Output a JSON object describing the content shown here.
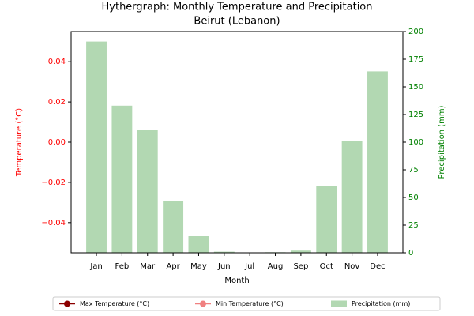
{
  "chart_data": {
    "type": "bar",
    "title": "Hythergraph: Monthly Temperature and Precipitation",
    "subtitle": "Beirut (Lebanon)",
    "xlabel": "Month",
    "ylabel": "Temperature (°C)",
    "y2label": "Precipitation (mm)",
    "categories": [
      "Jan",
      "Feb",
      "Mar",
      "Apr",
      "May",
      "Jun",
      "Jul",
      "Aug",
      "Sep",
      "Oct",
      "Nov",
      "Dec"
    ],
    "series": [
      {
        "name": "Max Temperature (°C)",
        "type": "line",
        "color": "#8b0000",
        "values": [
          null,
          null,
          null,
          null,
          null,
          null,
          null,
          null,
          null,
          null,
          null,
          null
        ]
      },
      {
        "name": "Min Temperature (°C)",
        "type": "line",
        "color": "#f08080",
        "values": [
          null,
          null,
          null,
          null,
          null,
          null,
          null,
          null,
          null,
          null,
          null,
          null
        ]
      },
      {
        "name": "Precipitation (mm)",
        "type": "bar",
        "axis": "y2",
        "color": "#b2d8b2",
        "values": [
          191,
          133,
          111,
          47,
          15,
          1,
          0,
          0.5,
          2,
          60,
          101,
          164
        ]
      }
    ],
    "ylim": [
      -0.055,
      0.055
    ],
    "yticks": [
      {
        "value": -0.04,
        "label": "−0.04"
      },
      {
        "value": -0.02,
        "label": "−0.02"
      },
      {
        "value": 0,
        "label": "0.00"
      },
      0.02,
      0.04
    ],
    "y2lim": [
      0,
      200
    ],
    "y2ticks": [
      0,
      25,
      50,
      75,
      100,
      125,
      150,
      175,
      200
    ],
    "ycolor": "#ff0000",
    "y2color": "#008000",
    "legend": "bottom"
  }
}
